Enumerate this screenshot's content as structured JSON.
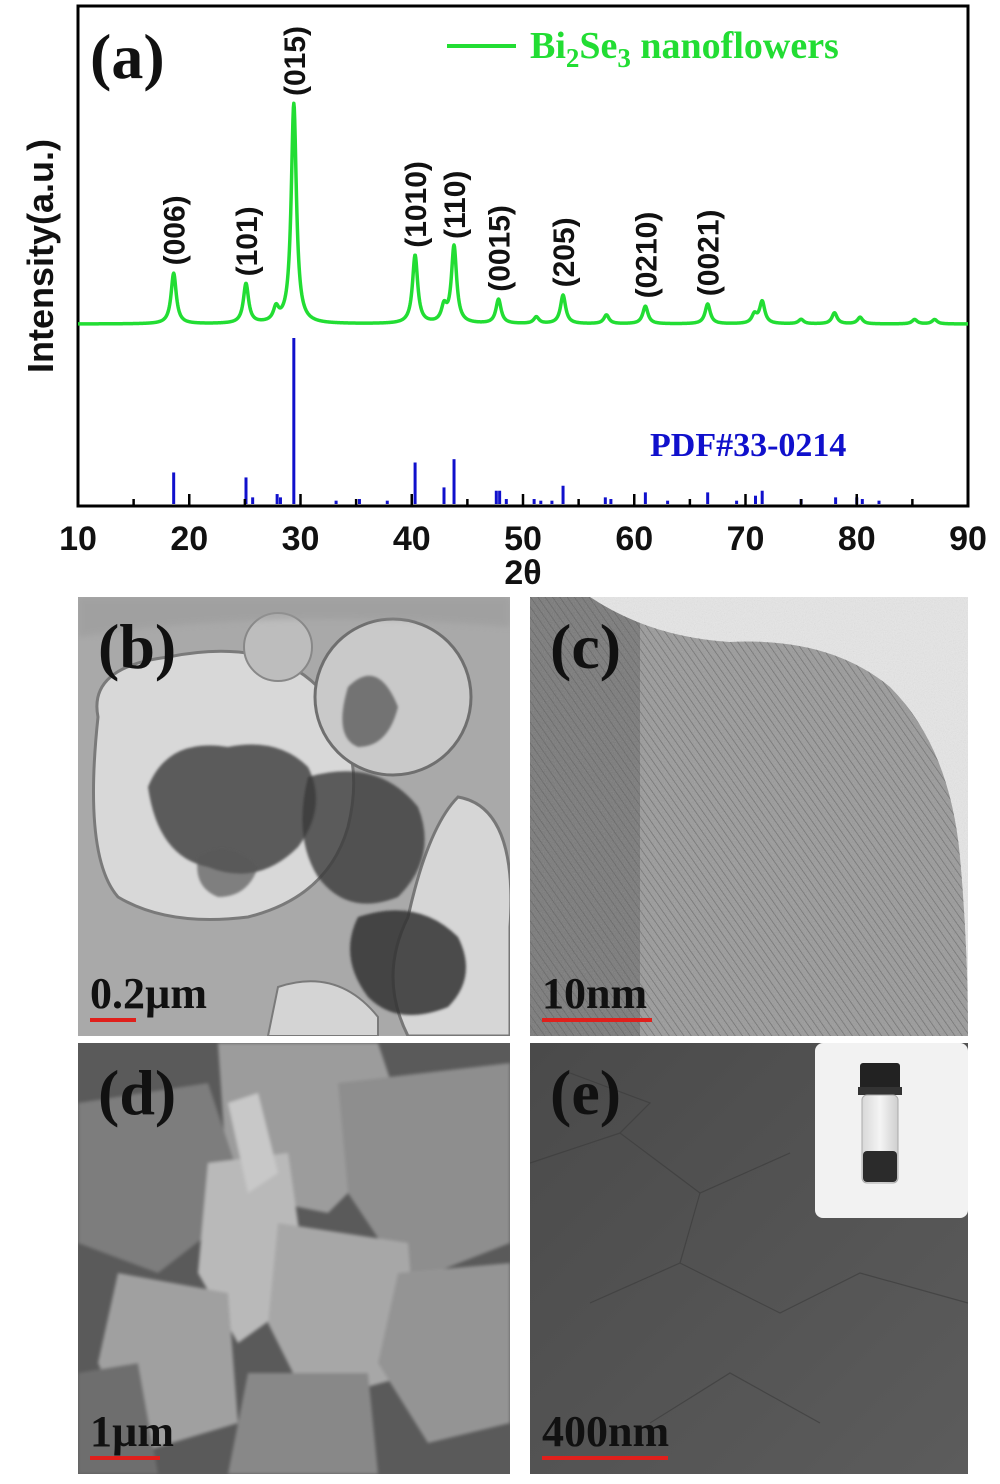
{
  "figure": {
    "panel_a_label": "(a)",
    "panel_b_label": "(b)",
    "panel_c_label": "(c)",
    "panel_d_label": "(d)",
    "panel_e_label": "(e)",
    "scale_b": "0.2µm",
    "scale_c": "10nm",
    "scale_d": "1µm",
    "scale_e": "400nm",
    "legend_name": "Bi",
    "legend_sub1": "2",
    "legend_mid": "Se",
    "legend_sub2": "3",
    "legend_rest": " nanoflowers",
    "reference_label": "PDF#33-0214",
    "colors": {
      "pattern": "#22dd33",
      "reference": "#1010cc",
      "scale_bar": "#e0201c"
    }
  },
  "chart_data": {
    "type": "line",
    "xlabel": "2θ",
    "ylabel": "Intensity(a.u.)",
    "xlim": [
      10,
      90
    ],
    "xticks": [
      10,
      20,
      30,
      40,
      50,
      60,
      70,
      80,
      90
    ],
    "yticks": [],
    "legend_position": "top-right",
    "series": [
      {
        "name": "Bi2Se3 nanoflowers",
        "color": "#22dd33",
        "peaks": [
          {
            "x": 18.6,
            "height": 0.23
          },
          {
            "x": 25.1,
            "height": 0.18
          },
          {
            "x": 27.8,
            "height": 0.06
          },
          {
            "x": 29.4,
            "height": 1.0
          },
          {
            "x": 40.3,
            "height": 0.31
          },
          {
            "x": 42.9,
            "height": 0.07
          },
          {
            "x": 43.8,
            "height": 0.35
          },
          {
            "x": 47.8,
            "height": 0.11
          },
          {
            "x": 51.2,
            "height": 0.03
          },
          {
            "x": 53.6,
            "height": 0.13
          },
          {
            "x": 57.5,
            "height": 0.04
          },
          {
            "x": 61.0,
            "height": 0.08
          },
          {
            "x": 66.6,
            "height": 0.09
          },
          {
            "x": 71.5,
            "height": 0.1
          },
          {
            "x": 70.8,
            "height": 0.04
          },
          {
            "x": 75.0,
            "height": 0.02
          },
          {
            "x": 78.0,
            "height": 0.05
          },
          {
            "x": 80.3,
            "height": 0.03
          },
          {
            "x": 85.2,
            "height": 0.02
          },
          {
            "x": 87.0,
            "height": 0.02
          }
        ]
      }
    ],
    "peak_labels": [
      {
        "x": 18.6,
        "text": "(006)"
      },
      {
        "x": 25.1,
        "text": "(101)"
      },
      {
        "x": 29.4,
        "text": "(015)"
      },
      {
        "x": 40.3,
        "text": "(1010)"
      },
      {
        "x": 43.8,
        "text": "(110)"
      },
      {
        "x": 47.8,
        "text": "(0015)"
      },
      {
        "x": 53.6,
        "text": "(205)"
      },
      {
        "x": 61.0,
        "text": "(0210)"
      },
      {
        "x": 66.6,
        "text": "(0021)"
      }
    ],
    "reference": {
      "name": "PDF#33-0214",
      "color": "#1010cc",
      "lines": [
        {
          "x": 18.6,
          "height": 0.19
        },
        {
          "x": 25.1,
          "height": 0.16
        },
        {
          "x": 25.7,
          "height": 0.04
        },
        {
          "x": 27.9,
          "height": 0.06
        },
        {
          "x": 28.2,
          "height": 0.04
        },
        {
          "x": 29.4,
          "height": 1.0
        },
        {
          "x": 33.2,
          "height": 0.02
        },
        {
          "x": 35.3,
          "height": 0.03
        },
        {
          "x": 37.8,
          "height": 0.02
        },
        {
          "x": 40.3,
          "height": 0.25
        },
        {
          "x": 42.9,
          "height": 0.1
        },
        {
          "x": 43.8,
          "height": 0.27
        },
        {
          "x": 47.6,
          "height": 0.08
        },
        {
          "x": 47.9,
          "height": 0.08
        },
        {
          "x": 48.5,
          "height": 0.03
        },
        {
          "x": 51.0,
          "height": 0.03
        },
        {
          "x": 51.6,
          "height": 0.02
        },
        {
          "x": 52.6,
          "height": 0.02
        },
        {
          "x": 53.6,
          "height": 0.11
        },
        {
          "x": 57.4,
          "height": 0.04
        },
        {
          "x": 57.9,
          "height": 0.03
        },
        {
          "x": 61.0,
          "height": 0.07
        },
        {
          "x": 63.0,
          "height": 0.02
        },
        {
          "x": 66.6,
          "height": 0.07
        },
        {
          "x": 69.2,
          "height": 0.02
        },
        {
          "x": 70.9,
          "height": 0.05
        },
        {
          "x": 71.5,
          "height": 0.08
        },
        {
          "x": 75.0,
          "height": 0.03
        },
        {
          "x": 78.1,
          "height": 0.04
        },
        {
          "x": 80.0,
          "height": 0.04
        },
        {
          "x": 80.5,
          "height": 0.03
        },
        {
          "x": 82.0,
          "height": 0.02
        }
      ]
    }
  }
}
